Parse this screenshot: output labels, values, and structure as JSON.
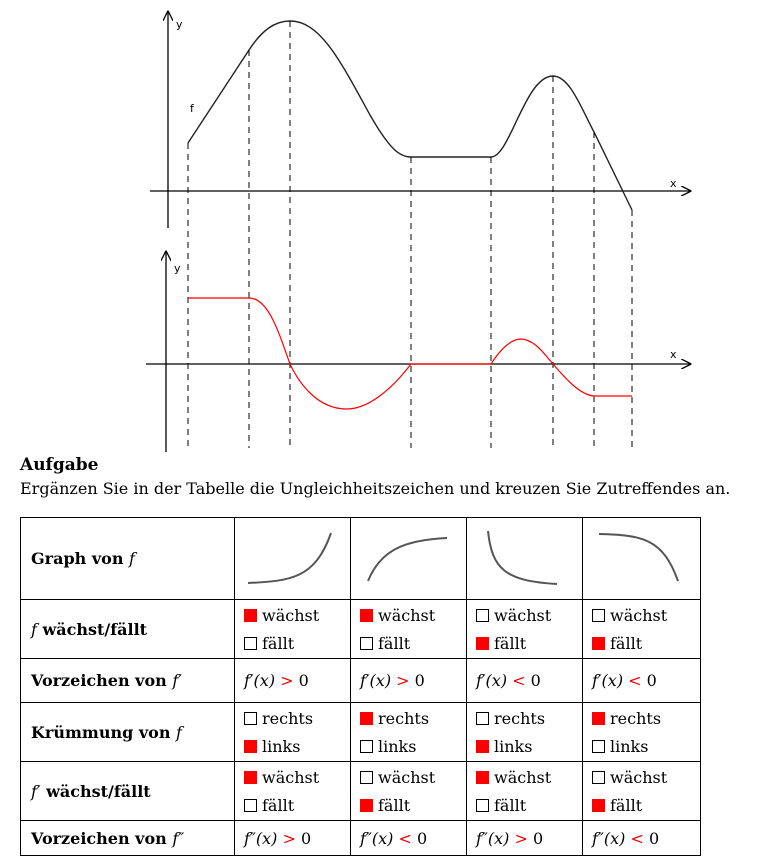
{
  "diagram": {
    "top_graph": {
      "y_label": "y",
      "x_label": "x",
      "f_label": "f"
    },
    "bottom_graph": {
      "y_label": "y",
      "x_label": "x"
    },
    "colors": {
      "f_curve": "#222222",
      "derivative_curve": "#ff0000"
    }
  },
  "task": {
    "title": "Aufgabe",
    "text": "Ergänzen Sie in der Tabelle die Ungleichheitszeichen und kreuzen Sie Zutreffendes an."
  },
  "table": {
    "row_graph": {
      "label": "Graph von ",
      "var": "f"
    },
    "row_growth_f": {
      "var": "f",
      "label": " wächst/fällt",
      "opt1": "wächst",
      "opt2": "fällt",
      "checked": [
        [
          true,
          false
        ],
        [
          true,
          false
        ],
        [
          false,
          true
        ],
        [
          false,
          true
        ]
      ]
    },
    "row_sign_f1": {
      "label": "Vorzeichen von ",
      "var": "f′",
      "cells": [
        {
          "expr": "f′(x)",
          "op": ">",
          "val": "0"
        },
        {
          "expr": "f′(x)",
          "op": ">",
          "val": "0"
        },
        {
          "expr": "f′(x)",
          "op": "<",
          "val": "0"
        },
        {
          "expr": "f′(x)",
          "op": "<",
          "val": "0"
        }
      ]
    },
    "row_curvature": {
      "label": "Krümmung von ",
      "var": "f",
      "opt1": "rechts",
      "opt2": "links",
      "checked": [
        [
          false,
          true
        ],
        [
          true,
          false
        ],
        [
          false,
          true
        ],
        [
          true,
          false
        ]
      ]
    },
    "row_growth_f1": {
      "var": "f′",
      "label": " wächst/fällt",
      "opt1": "wächst",
      "opt2": "fällt",
      "checked": [
        [
          true,
          false
        ],
        [
          false,
          true
        ],
        [
          true,
          false
        ],
        [
          false,
          true
        ]
      ]
    },
    "row_sign_f2": {
      "label": "Vorzeichen von ",
      "var": "f″",
      "cells": [
        {
          "expr": "f″(x)",
          "op": ">",
          "val": "0"
        },
        {
          "expr": "f″(x)",
          "op": "<",
          "val": "0"
        },
        {
          "expr": "f″(x)",
          "op": ">",
          "val": "0"
        },
        {
          "expr": "f″(x)",
          "op": "<",
          "val": "0"
        }
      ]
    }
  }
}
